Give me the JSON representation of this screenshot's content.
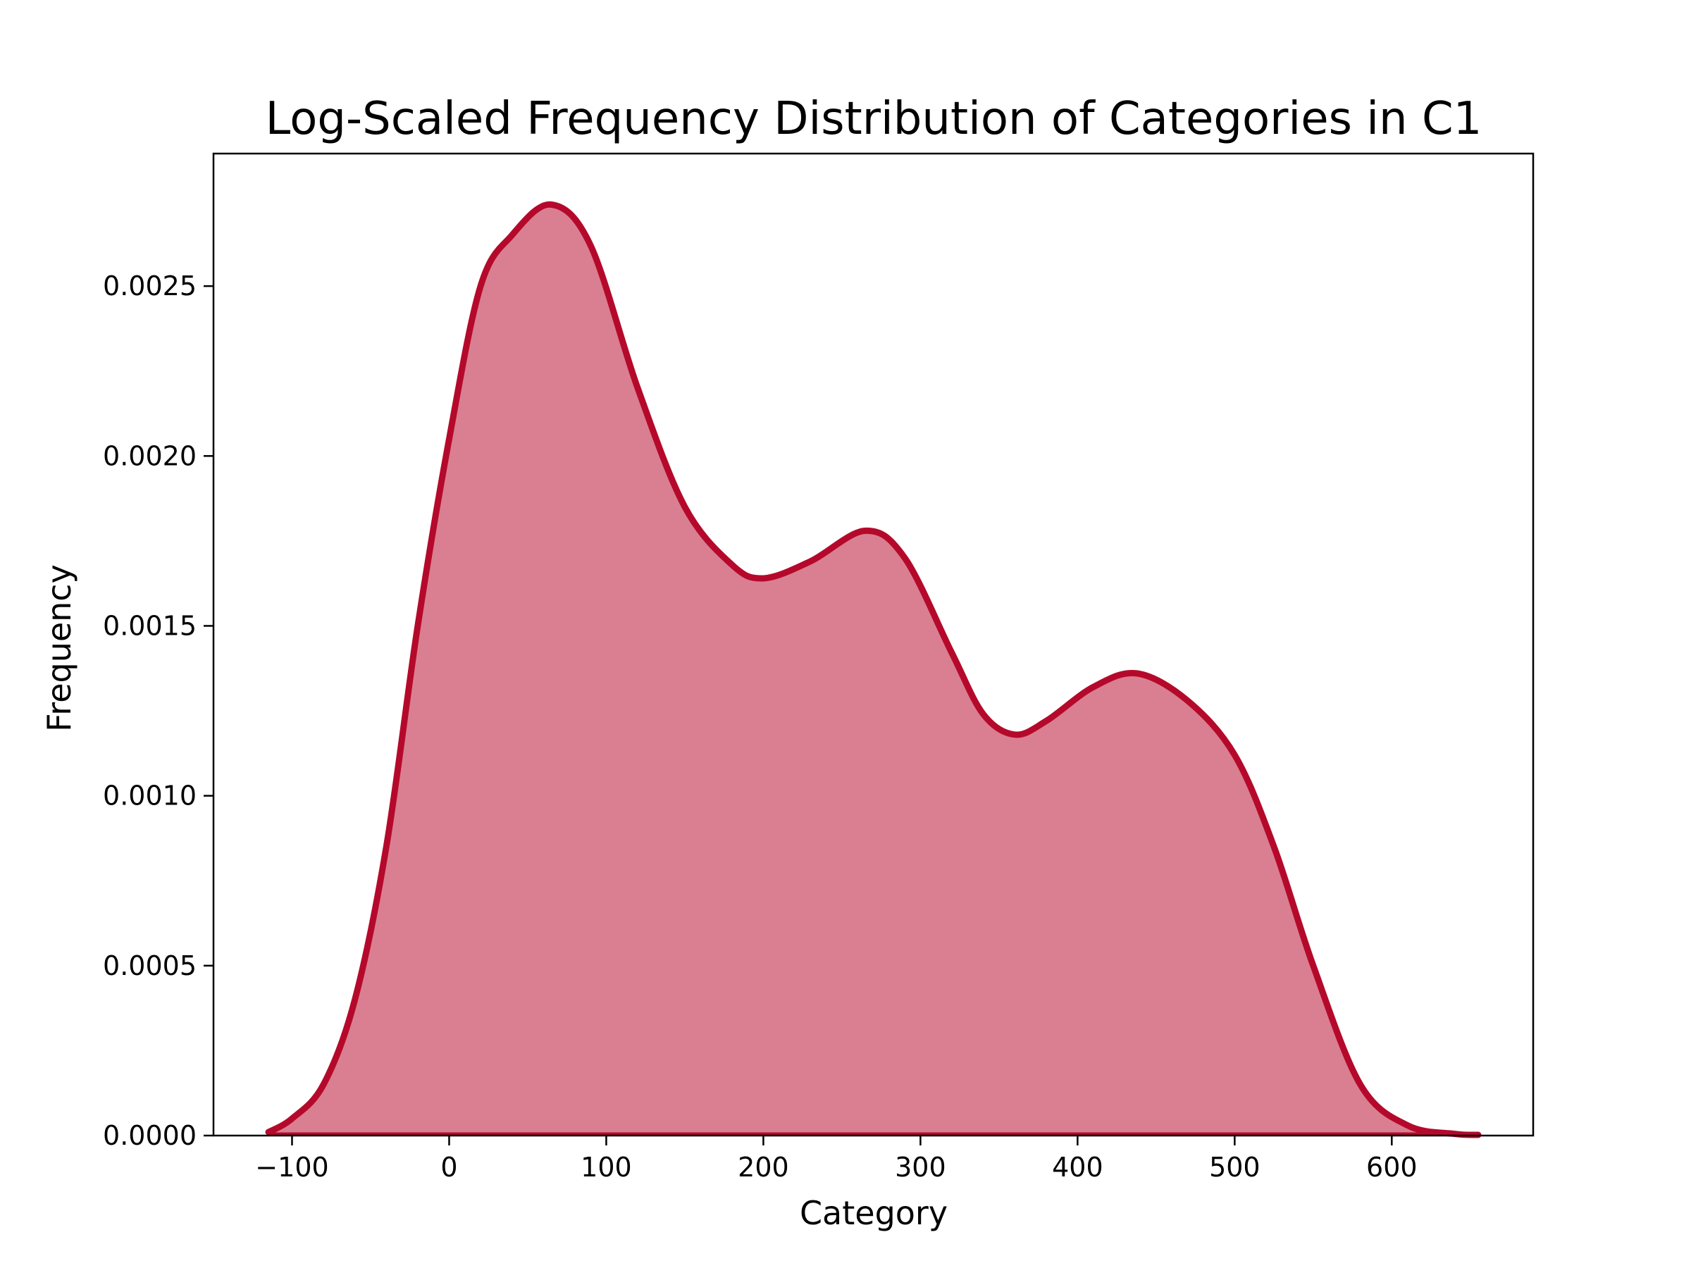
{
  "chart_data": {
    "type": "area",
    "title": "Log-Scaled Frequency Distribution of Categories in C1",
    "xlabel": "Category",
    "ylabel": "Frequency",
    "xlim": [
      -150,
      690
    ],
    "ylim": [
      0,
      0.00289
    ],
    "x_ticks": [
      -100,
      0,
      100,
      200,
      300,
      400,
      500,
      600
    ],
    "x_tick_labels": [
      "−100",
      "0",
      "100",
      "200",
      "300",
      "400",
      "500",
      "600"
    ],
    "y_ticks": [
      0,
      0.0005,
      0.001,
      0.0015,
      0.002,
      0.0025
    ],
    "y_tick_labels": [
      "0.0000",
      "0.0005",
      "0.0010",
      "0.0015",
      "0.0020",
      "0.0025"
    ],
    "grid": false,
    "colors": {
      "line": "#b5092b",
      "fill": "#d97f91"
    },
    "series": [
      {
        "x": [
          -115,
          -100,
          -80,
          -60,
          -40,
          -20,
          0,
          20,
          40,
          65,
          90,
          120,
          150,
          180,
          200,
          230,
          265,
          290,
          320,
          340,
          360,
          380,
          410,
          438,
          470,
          500,
          525,
          550,
          580,
          610,
          640,
          655
        ],
        "y": [
          1e-05,
          5e-05,
          0.00015,
          0.0004,
          0.00085,
          0.0015,
          0.00205,
          0.0025,
          0.00265,
          0.00274,
          0.00262,
          0.0022,
          0.00185,
          0.00168,
          0.00164,
          0.00169,
          0.00178,
          0.0017,
          0.00142,
          0.00124,
          0.00118,
          0.00122,
          0.00132,
          0.00136,
          0.00128,
          0.00112,
          0.00085,
          0.0005,
          0.00015,
          3e-05,
          5e-06,
          2e-06
        ]
      }
    ]
  }
}
